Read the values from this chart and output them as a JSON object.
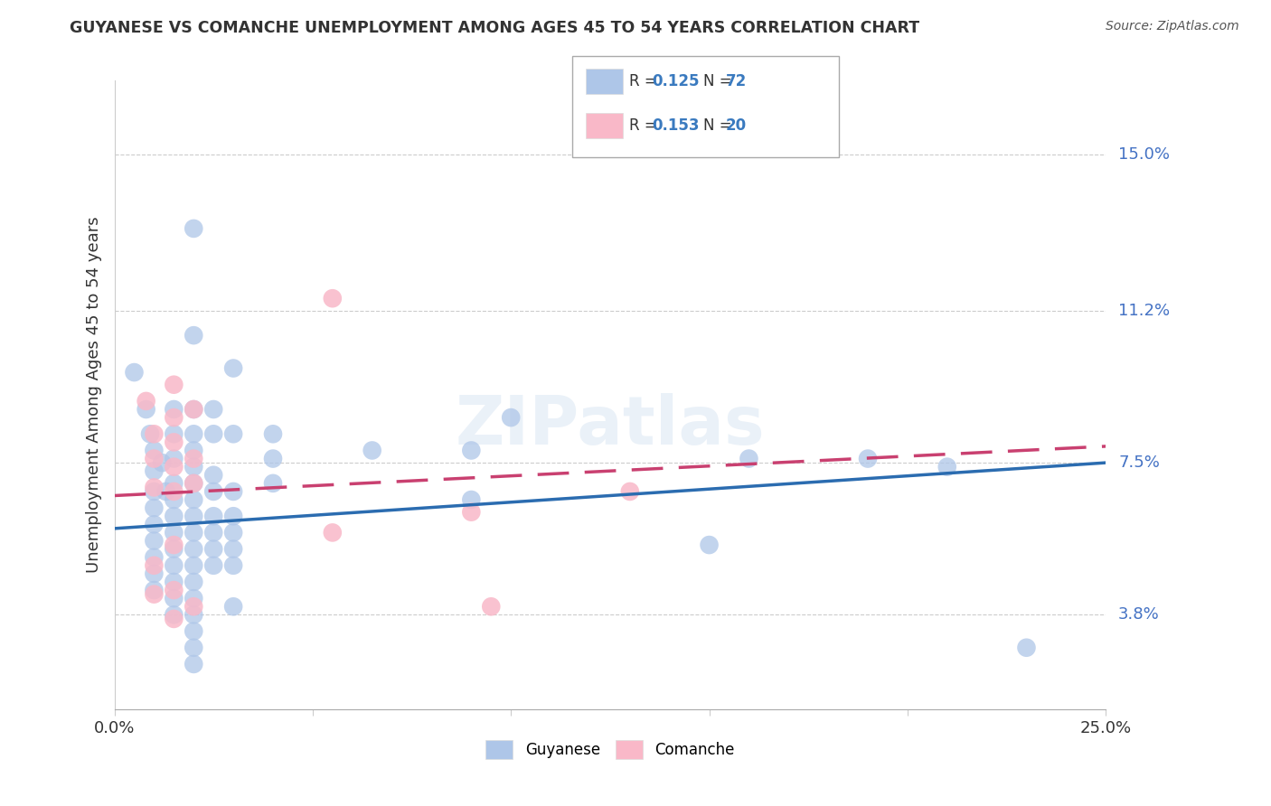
{
  "title": "GUYANESE VS COMANCHE UNEMPLOYMENT AMONG AGES 45 TO 54 YEARS CORRELATION CHART",
  "source": "Source: ZipAtlas.com",
  "ylabel": "Unemployment Among Ages 45 to 54 years",
  "ytick_labels": [
    "15.0%",
    "11.2%",
    "7.5%",
    "3.8%"
  ],
  "ytick_values": [
    0.15,
    0.112,
    0.075,
    0.038
  ],
  "xlim": [
    0.0,
    0.25
  ],
  "ylim": [
    0.015,
    0.168
  ],
  "guyanese_color": "#aec6e8",
  "guyanese_line_color": "#2b6cb0",
  "comanche_color": "#f9b8c8",
  "comanche_line_color": "#c94070",
  "gridline_color": "#cccccc",
  "guyanese_line": [
    [
      0.0,
      0.059
    ],
    [
      0.25,
      0.075
    ]
  ],
  "comanche_line": [
    [
      0.0,
      0.067
    ],
    [
      0.25,
      0.079
    ]
  ],
  "guyanese_points": [
    [
      0.005,
      0.097
    ],
    [
      0.008,
      0.088
    ],
    [
      0.009,
      0.082
    ],
    [
      0.01,
      0.078
    ],
    [
      0.01,
      0.073
    ],
    [
      0.01,
      0.068
    ],
    [
      0.01,
      0.064
    ],
    [
      0.01,
      0.06
    ],
    [
      0.01,
      0.056
    ],
    [
      0.01,
      0.052
    ],
    [
      0.01,
      0.048
    ],
    [
      0.01,
      0.044
    ],
    [
      0.012,
      0.075
    ],
    [
      0.013,
      0.068
    ],
    [
      0.015,
      0.088
    ],
    [
      0.015,
      0.082
    ],
    [
      0.015,
      0.076
    ],
    [
      0.015,
      0.07
    ],
    [
      0.015,
      0.066
    ],
    [
      0.015,
      0.062
    ],
    [
      0.015,
      0.058
    ],
    [
      0.015,
      0.054
    ],
    [
      0.015,
      0.05
    ],
    [
      0.015,
      0.046
    ],
    [
      0.015,
      0.042
    ],
    [
      0.015,
      0.038
    ],
    [
      0.02,
      0.132
    ],
    [
      0.02,
      0.106
    ],
    [
      0.02,
      0.088
    ],
    [
      0.02,
      0.082
    ],
    [
      0.02,
      0.078
    ],
    [
      0.02,
      0.074
    ],
    [
      0.02,
      0.07
    ],
    [
      0.02,
      0.066
    ],
    [
      0.02,
      0.062
    ],
    [
      0.02,
      0.058
    ],
    [
      0.02,
      0.054
    ],
    [
      0.02,
      0.05
    ],
    [
      0.02,
      0.046
    ],
    [
      0.02,
      0.042
    ],
    [
      0.02,
      0.038
    ],
    [
      0.02,
      0.034
    ],
    [
      0.02,
      0.03
    ],
    [
      0.02,
      0.026
    ],
    [
      0.025,
      0.088
    ],
    [
      0.025,
      0.082
    ],
    [
      0.025,
      0.072
    ],
    [
      0.025,
      0.068
    ],
    [
      0.025,
      0.062
    ],
    [
      0.025,
      0.058
    ],
    [
      0.025,
      0.054
    ],
    [
      0.025,
      0.05
    ],
    [
      0.03,
      0.098
    ],
    [
      0.03,
      0.082
    ],
    [
      0.03,
      0.068
    ],
    [
      0.03,
      0.062
    ],
    [
      0.03,
      0.058
    ],
    [
      0.03,
      0.054
    ],
    [
      0.03,
      0.05
    ],
    [
      0.03,
      0.04
    ],
    [
      0.04,
      0.082
    ],
    [
      0.04,
      0.076
    ],
    [
      0.04,
      0.07
    ],
    [
      0.065,
      0.078
    ],
    [
      0.09,
      0.078
    ],
    [
      0.09,
      0.066
    ],
    [
      0.1,
      0.086
    ],
    [
      0.15,
      0.055
    ],
    [
      0.16,
      0.076
    ],
    [
      0.19,
      0.076
    ],
    [
      0.21,
      0.074
    ],
    [
      0.23,
      0.03
    ]
  ],
  "comanche_points": [
    [
      0.008,
      0.09
    ],
    [
      0.01,
      0.082
    ],
    [
      0.01,
      0.076
    ],
    [
      0.01,
      0.069
    ],
    [
      0.01,
      0.05
    ],
    [
      0.01,
      0.043
    ],
    [
      0.015,
      0.094
    ],
    [
      0.015,
      0.086
    ],
    [
      0.015,
      0.08
    ],
    [
      0.015,
      0.074
    ],
    [
      0.015,
      0.068
    ],
    [
      0.015,
      0.055
    ],
    [
      0.015,
      0.044
    ],
    [
      0.015,
      0.037
    ],
    [
      0.02,
      0.088
    ],
    [
      0.02,
      0.076
    ],
    [
      0.02,
      0.07
    ],
    [
      0.02,
      0.04
    ],
    [
      0.055,
      0.115
    ],
    [
      0.055,
      0.058
    ],
    [
      0.09,
      0.063
    ],
    [
      0.095,
      0.04
    ],
    [
      0.13,
      0.068
    ]
  ]
}
